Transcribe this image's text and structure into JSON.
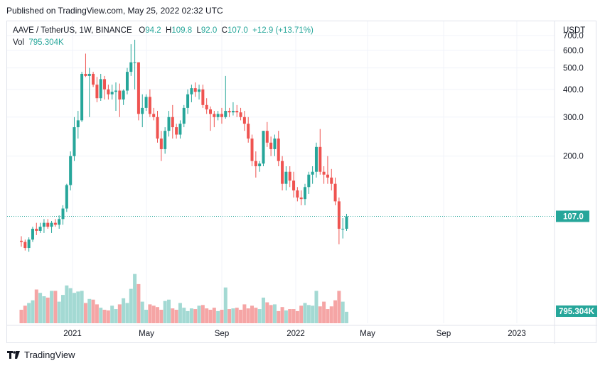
{
  "published": "Published on TradingView.com, May 25, 2022 02:32 UTC",
  "legend": {
    "symbol": "AAVE / TetherUS, 1W, BINANCE",
    "o_label": "O",
    "o": "94.2",
    "h_label": "H",
    "h": "109.8",
    "l_label": "L",
    "l": "92.0",
    "c_label": "C",
    "c": "107.0",
    "change": "+12.9 (+13.71%)",
    "vol_label": "Vol",
    "vol": "795.304K"
  },
  "currency": "USDT",
  "price_badge": "107.0",
  "volume_badge": "795.304K",
  "footer": {
    "brand": "TradingView",
    "logo_icon": "tradingview-logo-icon"
  },
  "colors": {
    "up": "#26a69a",
    "down": "#ef5350",
    "up_vol": "#a3d9d3",
    "down_vol": "#f5a5a5"
  },
  "chart_data": {
    "type": "candlestick",
    "interval": "1W",
    "y_ticks": [
      "700.0",
      "600.0",
      "500.0",
      "400.0",
      "300.0",
      "200.0"
    ],
    "x_ticks": [
      "2021",
      "May",
      "Sep",
      "2022",
      "May",
      "Sep",
      "2023"
    ],
    "ylim": [
      65,
      700
    ],
    "last_price": 107.0,
    "candles": [
      [
        83,
        87,
        78,
        82,
        0.2
      ],
      [
        82,
        84,
        75,
        77,
        0.26
      ],
      [
        77,
        86,
        74,
        84,
        0.3
      ],
      [
        84,
        96,
        82,
        94,
        0.34
      ],
      [
        94,
        100,
        88,
        92,
        0.5
      ],
      [
        92,
        100,
        90,
        96,
        0.45
      ],
      [
        96,
        104,
        90,
        100,
        0.4
      ],
      [
        100,
        104,
        94,
        96,
        0.38
      ],
      [
        96,
        102,
        90,
        100,
        0.48
      ],
      [
        100,
        104,
        96,
        98,
        0.48
      ],
      [
        98,
        108,
        94,
        104,
        0.32
      ],
      [
        104,
        120,
        98,
        116,
        0.42
      ],
      [
        116,
        150,
        112,
        148,
        0.56
      ],
      [
        148,
        210,
        140,
        200,
        0.52
      ],
      [
        200,
        300,
        190,
        270,
        0.45
      ],
      [
        270,
        320,
        240,
        290,
        0.47
      ],
      [
        290,
        480,
        285,
        470,
        0.48
      ],
      [
        470,
        580,
        455,
        460,
        0.3
      ],
      [
        460,
        500,
        300,
        470,
        0.36
      ],
      [
        470,
        480,
        410,
        420,
        0.35
      ],
      [
        420,
        455,
        350,
        365,
        0.28
      ],
      [
        365,
        470,
        355,
        445,
        0.23
      ],
      [
        445,
        460,
        360,
        400,
        0.2
      ],
      [
        400,
        420,
        360,
        380,
        0.19
      ],
      [
        380,
        420,
        360,
        390,
        0.26
      ],
      [
        390,
        430,
        320,
        395,
        0.21
      ],
      [
        395,
        425,
        300,
        360,
        0.28
      ],
      [
        360,
        400,
        340,
        395,
        0.37
      ],
      [
        395,
        500,
        380,
        480,
        0.3
      ],
      [
        480,
        640,
        460,
        530,
        0.51
      ],
      [
        530,
        670,
        400,
        530,
        0.73
      ],
      [
        530,
        530,
        290,
        310,
        0.58
      ],
      [
        310,
        380,
        270,
        330,
        0.32
      ],
      [
        330,
        380,
        320,
        370,
        0.2
      ],
      [
        370,
        400,
        300,
        310,
        0.28
      ],
      [
        310,
        330,
        290,
        300,
        0.26
      ],
      [
        300,
        320,
        230,
        240,
        0.24
      ],
      [
        240,
        260,
        190,
        215,
        0.2
      ],
      [
        215,
        270,
        205,
        260,
        0.33
      ],
      [
        260,
        320,
        245,
        300,
        0.35
      ],
      [
        300,
        340,
        240,
        270,
        0.22
      ],
      [
        270,
        280,
        240,
        250,
        0.2
      ],
      [
        250,
        290,
        240,
        280,
        0.3
      ],
      [
        280,
        340,
        270,
        330,
        0.23
      ],
      [
        330,
        400,
        310,
        380,
        0.18
      ],
      [
        380,
        420,
        350,
        405,
        0.22
      ],
      [
        405,
        430,
        370,
        390,
        0.21
      ],
      [
        390,
        420,
        360,
        400,
        0.26
      ],
      [
        400,
        420,
        330,
        340,
        0.27
      ],
      [
        340,
        365,
        310,
        325,
        0.22
      ],
      [
        325,
        335,
        260,
        310,
        0.2
      ],
      [
        310,
        320,
        270,
        300,
        0.23
      ],
      [
        300,
        320,
        290,
        310,
        0.18
      ],
      [
        310,
        330,
        280,
        300,
        0.2
      ],
      [
        300,
        460,
        295,
        320,
        0.53
      ],
      [
        320,
        330,
        300,
        315,
        0.21
      ],
      [
        315,
        350,
        305,
        320,
        0.22
      ],
      [
        320,
        340,
        300,
        315,
        0.23
      ],
      [
        315,
        330,
        290,
        300,
        0.2
      ],
      [
        300,
        320,
        260,
        280,
        0.28
      ],
      [
        280,
        300,
        230,
        240,
        0.22
      ],
      [
        240,
        250,
        180,
        190,
        0.26
      ],
      [
        190,
        210,
        160,
        180,
        0.23
      ],
      [
        180,
        190,
        170,
        185,
        0.21
      ],
      [
        185,
        260,
        180,
        260,
        0.38
      ],
      [
        260,
        285,
        220,
        230,
        0.31
      ],
      [
        230,
        245,
        200,
        215,
        0.27
      ],
      [
        215,
        250,
        200,
        240,
        0.28
      ],
      [
        240,
        260,
        180,
        190,
        0.18
      ],
      [
        190,
        200,
        140,
        150,
        0.24
      ],
      [
        150,
        180,
        140,
        170,
        0.19
      ],
      [
        170,
        180,
        145,
        155,
        0.21
      ],
      [
        155,
        170,
        130,
        140,
        0.21
      ],
      [
        140,
        145,
        125,
        130,
        0.18
      ],
      [
        130,
        140,
        120,
        128,
        0.26
      ],
      [
        128,
        150,
        120,
        145,
        0.3
      ],
      [
        145,
        170,
        135,
        165,
        0.27
      ],
      [
        165,
        180,
        150,
        170,
        0.26
      ],
      [
        170,
        230,
        160,
        220,
        0.48
      ],
      [
        220,
        265,
        165,
        170,
        0.25
      ],
      [
        170,
        180,
        150,
        165,
        0.32
      ],
      [
        165,
        200,
        150,
        160,
        0.21
      ],
      [
        160,
        175,
        140,
        150,
        0.25
      ],
      [
        150,
        160,
        120,
        125,
        0.34
      ],
      [
        125,
        130,
        80,
        94,
        0.48
      ],
      [
        94,
        105,
        85,
        94,
        0.32
      ],
      [
        94,
        109.8,
        92,
        107,
        0.17
      ]
    ]
  }
}
